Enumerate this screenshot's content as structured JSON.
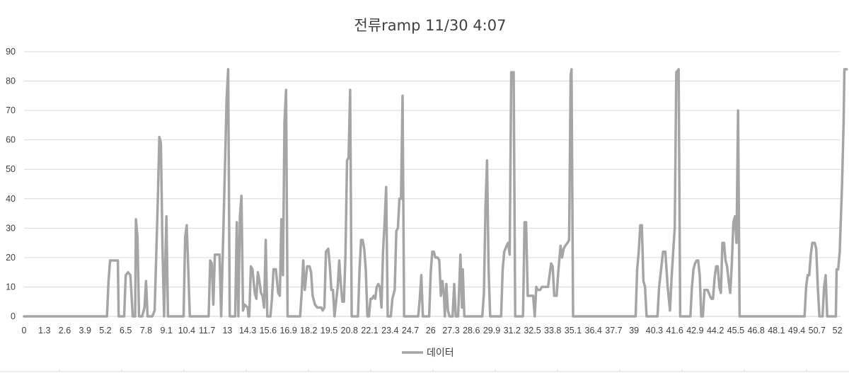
{
  "chart_data": {
    "type": "line",
    "title": "전류ramp 11/30 4:07",
    "xlabel": "",
    "ylabel": "",
    "ylim": [
      0,
      90
    ],
    "yticks": [
      0,
      10,
      20,
      30,
      40,
      50,
      60,
      70,
      80,
      90
    ],
    "x_tick_labels": [
      "0",
      "1.3",
      "2.6",
      "3.9",
      "5.2",
      "6.5",
      "7.8",
      "9.1",
      "10.4",
      "11.7",
      "13",
      "14.3",
      "15.6",
      "16.9",
      "18.2",
      "19.5",
      "20.8",
      "22.1",
      "23.4",
      "24.7",
      "26",
      "27.3",
      "28.6",
      "29.9",
      "31.2",
      "32.5",
      "33.8",
      "35.1",
      "36.4",
      "37.7",
      "39",
      "40.3",
      "41.6",
      "42.9",
      "44.2",
      "45.5",
      "46.8",
      "48.1",
      "49.4",
      "50.7",
      "52"
    ],
    "x_min": 0,
    "x_max": 52.2,
    "grid": true,
    "legend_position": "bottom",
    "line_color": "#a5a5a5",
    "series": [
      {
        "name": "데이터",
        "points": [
          [
            0,
            0
          ],
          [
            5.3,
            0
          ],
          [
            5.4,
            12
          ],
          [
            5.5,
            19
          ],
          [
            6.0,
            19
          ],
          [
            6.05,
            0
          ],
          [
            6.4,
            0
          ],
          [
            6.5,
            14
          ],
          [
            6.65,
            15
          ],
          [
            6.8,
            14
          ],
          [
            6.95,
            0
          ],
          [
            7.1,
            0
          ],
          [
            7.15,
            33
          ],
          [
            7.25,
            27
          ],
          [
            7.35,
            0
          ],
          [
            7.55,
            0
          ],
          [
            7.7,
            3
          ],
          [
            7.8,
            12
          ],
          [
            7.9,
            0
          ],
          [
            8.2,
            0
          ],
          [
            8.35,
            2
          ],
          [
            8.55,
            39
          ],
          [
            8.65,
            61
          ],
          [
            8.75,
            59
          ],
          [
            8.85,
            24
          ],
          [
            8.95,
            0
          ],
          [
            9.1,
            34
          ],
          [
            9.2,
            0
          ],
          [
            10.2,
            0
          ],
          [
            10.3,
            27
          ],
          [
            10.4,
            31
          ],
          [
            10.5,
            16
          ],
          [
            10.6,
            0
          ],
          [
            11.8,
            0
          ],
          [
            11.9,
            19
          ],
          [
            12.0,
            18
          ],
          [
            12.1,
            4
          ],
          [
            12.2,
            21
          ],
          [
            12.5,
            21
          ],
          [
            12.6,
            0
          ],
          [
            12.85,
            52
          ],
          [
            12.95,
            74
          ],
          [
            13.05,
            84
          ],
          [
            13.15,
            0
          ],
          [
            13.5,
            0
          ],
          [
            13.6,
            32
          ],
          [
            13.7,
            0
          ],
          [
            13.8,
            34
          ],
          [
            13.9,
            41
          ],
          [
            14.0,
            2
          ],
          [
            14.1,
            4
          ],
          [
            14.3,
            3
          ],
          [
            14.35,
            0
          ],
          [
            14.4,
            0
          ],
          [
            14.5,
            17
          ],
          [
            14.6,
            16
          ],
          [
            14.75,
            8
          ],
          [
            14.85,
            6
          ],
          [
            14.95,
            15
          ],
          [
            15.05,
            12
          ],
          [
            15.15,
            8
          ],
          [
            15.25,
            7
          ],
          [
            15.35,
            3
          ],
          [
            15.45,
            26
          ],
          [
            15.55,
            0
          ],
          [
            15.75,
            0
          ],
          [
            15.85,
            6
          ],
          [
            15.95,
            16
          ],
          [
            16.1,
            16
          ],
          [
            16.25,
            8
          ],
          [
            16.35,
            7
          ],
          [
            16.45,
            33
          ],
          [
            16.55,
            14
          ],
          [
            16.65,
            66
          ],
          [
            16.75,
            77
          ],
          [
            16.85,
            0
          ],
          [
            17.5,
            0
          ],
          [
            17.65,
            0
          ],
          [
            17.75,
            8
          ],
          [
            17.85,
            19
          ],
          [
            17.95,
            9
          ],
          [
            18.1,
            17
          ],
          [
            18.25,
            17
          ],
          [
            18.35,
            15
          ],
          [
            18.45,
            7
          ],
          [
            18.6,
            4
          ],
          [
            18.75,
            3
          ],
          [
            19.0,
            3
          ],
          [
            19.1,
            2
          ],
          [
            19.2,
            3
          ],
          [
            19.3,
            22
          ],
          [
            19.45,
            23
          ],
          [
            19.55,
            17
          ],
          [
            19.65,
            9
          ],
          [
            19.75,
            9
          ],
          [
            19.85,
            0
          ],
          [
            20.05,
            10
          ],
          [
            20.15,
            19
          ],
          [
            20.25,
            11
          ],
          [
            20.35,
            5
          ],
          [
            20.45,
            5
          ],
          [
            20.55,
            21
          ],
          [
            20.65,
            53
          ],
          [
            20.75,
            54
          ],
          [
            20.85,
            77
          ],
          [
            20.95,
            0
          ],
          [
            21.35,
            0
          ],
          [
            21.45,
            16
          ],
          [
            21.55,
            26
          ],
          [
            21.65,
            26
          ],
          [
            21.75,
            23
          ],
          [
            21.85,
            16
          ],
          [
            21.95,
            0
          ],
          [
            22.05,
            0
          ],
          [
            22.15,
            6
          ],
          [
            22.25,
            6
          ],
          [
            22.35,
            7
          ],
          [
            22.45,
            6
          ],
          [
            22.55,
            10
          ],
          [
            22.65,
            11
          ],
          [
            22.75,
            10
          ],
          [
            22.85,
            3
          ],
          [
            22.95,
            22
          ],
          [
            23.05,
            32
          ],
          [
            23.15,
            44
          ],
          [
            23.25,
            0
          ],
          [
            23.45,
            0
          ],
          [
            23.55,
            6
          ],
          [
            23.7,
            9
          ],
          [
            23.8,
            29
          ],
          [
            23.9,
            30
          ],
          [
            24.0,
            40
          ],
          [
            24.1,
            40
          ],
          [
            24.2,
            75
          ],
          [
            24.3,
            0
          ],
          [
            25.2,
            0
          ],
          [
            25.3,
            6
          ],
          [
            25.4,
            14
          ],
          [
            25.5,
            0
          ],
          [
            25.9,
            0
          ],
          [
            26.0,
            15
          ],
          [
            26.1,
            22
          ],
          [
            26.2,
            22
          ],
          [
            26.3,
            20
          ],
          [
            26.45,
            20
          ],
          [
            26.55,
            19
          ],
          [
            26.65,
            7
          ],
          [
            26.75,
            12
          ],
          [
            26.85,
            7
          ],
          [
            26.9,
            0
          ],
          [
            27.0,
            11
          ],
          [
            27.1,
            2
          ],
          [
            27.2,
            0
          ],
          [
            27.4,
            0
          ],
          [
            27.5,
            11
          ],
          [
            27.6,
            0
          ],
          [
            27.75,
            0
          ],
          [
            27.9,
            21
          ],
          [
            28.0,
            3
          ],
          [
            28.05,
            16
          ],
          [
            28.15,
            0
          ],
          [
            29.15,
            0
          ],
          [
            29.3,
            0
          ],
          [
            29.4,
            8
          ],
          [
            29.5,
            37
          ],
          [
            29.6,
            53
          ],
          [
            29.7,
            16
          ],
          [
            29.8,
            0
          ],
          [
            30.5,
            0
          ],
          [
            30.6,
            16
          ],
          [
            30.7,
            22
          ],
          [
            30.85,
            24
          ],
          [
            30.95,
            25
          ],
          [
            31.05,
            21
          ],
          [
            31.15,
            83
          ],
          [
            31.3,
            83
          ],
          [
            31.4,
            0
          ],
          [
            31.9,
            0
          ],
          [
            31.95,
            15
          ],
          [
            32.0,
            32
          ],
          [
            32.1,
            32
          ],
          [
            32.2,
            7
          ],
          [
            32.55,
            7
          ],
          [
            32.65,
            0
          ],
          [
            32.75,
            10
          ],
          [
            32.85,
            9
          ],
          [
            33.0,
            9
          ],
          [
            33.1,
            10
          ],
          [
            33.5,
            10
          ],
          [
            33.6,
            14
          ],
          [
            33.7,
            18
          ],
          [
            33.8,
            17
          ],
          [
            33.9,
            7
          ],
          [
            34.05,
            7
          ],
          [
            34.15,
            15
          ],
          [
            34.3,
            24
          ],
          [
            34.4,
            20
          ],
          [
            34.5,
            23
          ],
          [
            34.6,
            24
          ],
          [
            34.75,
            25
          ],
          [
            34.85,
            26
          ],
          [
            34.95,
            82
          ],
          [
            35.0,
            84
          ],
          [
            35.1,
            0
          ],
          [
            39.1,
            0
          ],
          [
            39.2,
            16
          ],
          [
            39.3,
            22
          ],
          [
            39.4,
            31
          ],
          [
            39.5,
            31
          ],
          [
            39.6,
            12
          ],
          [
            39.7,
            10
          ],
          [
            39.8,
            0
          ],
          [
            40.5,
            0
          ],
          [
            40.6,
            10
          ],
          [
            40.75,
            17
          ],
          [
            40.85,
            22
          ],
          [
            41.0,
            22
          ],
          [
            41.15,
            10
          ],
          [
            41.3,
            2
          ],
          [
            41.4,
            13
          ],
          [
            41.5,
            22
          ],
          [
            41.6,
            30
          ],
          [
            41.7,
            83
          ],
          [
            41.85,
            84
          ],
          [
            41.95,
            0
          ],
          [
            42.6,
            0
          ],
          [
            42.7,
            10
          ],
          [
            42.8,
            16
          ],
          [
            42.9,
            18
          ],
          [
            43.0,
            19
          ],
          [
            43.1,
            19
          ],
          [
            43.2,
            14
          ],
          [
            43.3,
            0
          ],
          [
            43.4,
            0
          ],
          [
            43.5,
            9
          ],
          [
            43.7,
            9
          ],
          [
            43.85,
            7
          ],
          [
            43.95,
            6
          ],
          [
            44.05,
            6
          ],
          [
            44.15,
            13
          ],
          [
            44.25,
            17
          ],
          [
            44.35,
            17
          ],
          [
            44.45,
            10
          ],
          [
            44.55,
            8
          ],
          [
            44.65,
            25
          ],
          [
            44.75,
            25
          ],
          [
            44.85,
            19
          ],
          [
            44.95,
            17
          ],
          [
            45.05,
            12
          ],
          [
            45.15,
            8
          ],
          [
            45.25,
            18
          ],
          [
            45.35,
            32
          ],
          [
            45.45,
            34
          ],
          [
            45.55,
            25
          ],
          [
            45.65,
            70
          ],
          [
            45.75,
            0
          ],
          [
            49.9,
            0
          ],
          [
            50.0,
            10
          ],
          [
            50.1,
            14
          ],
          [
            50.2,
            14
          ],
          [
            50.3,
            21
          ],
          [
            50.4,
            25
          ],
          [
            50.55,
            25
          ],
          [
            50.65,
            23
          ],
          [
            50.75,
            10
          ],
          [
            50.85,
            0
          ],
          [
            51.05,
            0
          ],
          [
            51.15,
            10
          ],
          [
            51.25,
            14
          ],
          [
            51.35,
            0
          ],
          [
            51.9,
            0
          ],
          [
            51.95,
            16
          ],
          [
            52.05,
            16
          ],
          [
            52.15,
            22
          ],
          [
            52.3,
            45
          ],
          [
            52.4,
            66
          ],
          [
            52.45,
            84
          ],
          [
            52.6,
            84
          ]
        ]
      }
    ]
  }
}
